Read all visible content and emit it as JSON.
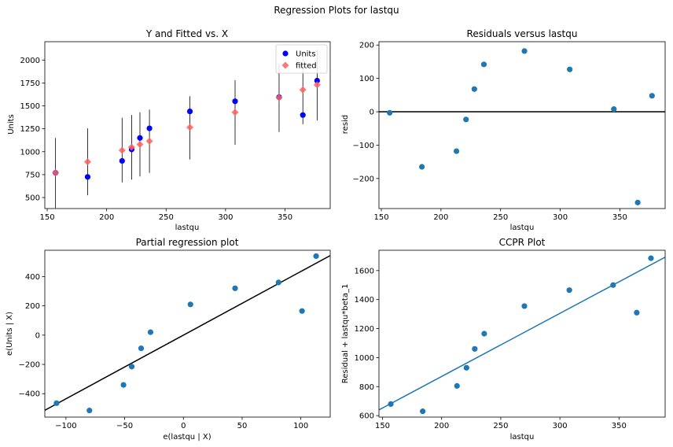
{
  "suptitle": "Regression Plots for lastqu",
  "chart_data": [
    {
      "type": "scatter",
      "title": "Y and Fitted vs. X",
      "xlabel": "lastqu",
      "ylabel": "Units",
      "xlim": [
        148,
        388
      ],
      "ylim": [
        380,
        2200
      ],
      "xticks": [
        150,
        200,
        250,
        300,
        350
      ],
      "yticks": [
        500,
        750,
        1000,
        1250,
        1500,
        1750,
        2000
      ],
      "legend": {
        "placement": "top-right",
        "entries": [
          "Units",
          "fitted"
        ]
      },
      "series": [
        {
          "name": "Units",
          "color": "#0000ff",
          "marker": "circle",
          "points": [
            [
              157,
              770
            ],
            [
              184,
              725
            ],
            [
              213,
              900
            ],
            [
              221,
              1025
            ],
            [
              228,
              1150
            ],
            [
              236,
              1255
            ],
            [
              270,
              1440
            ],
            [
              308,
              1550
            ],
            [
              345,
              1595
            ],
            [
              365,
              1400
            ],
            [
              377,
              1775
            ]
          ]
        },
        {
          "name": "fitted",
          "color": "#ff6060",
          "marker": "diamond",
          "points": [
            [
              157,
              770
            ],
            [
              184,
              890
            ],
            [
              213,
              1015
            ],
            [
              221,
              1050
            ],
            [
              228,
              1080
            ],
            [
              236,
              1115
            ],
            [
              270,
              1265
            ],
            [
              308,
              1430
            ],
            [
              345,
              1590
            ],
            [
              365,
              1675
            ],
            [
              377,
              1730
            ]
          ]
        }
      ],
      "error_bars": [
        [
          157,
          385,
          1150
        ],
        [
          184,
          525,
          1255
        ],
        [
          213,
          665,
          1370
        ],
        [
          221,
          695,
          1400
        ],
        [
          228,
          730,
          1430
        ],
        [
          236,
          770,
          1460
        ],
        [
          270,
          915,
          1605
        ],
        [
          308,
          1075,
          1780
        ],
        [
          345,
          1215,
          1960
        ],
        [
          365,
          1300,
          2050
        ],
        [
          377,
          1340,
          2110
        ]
      ]
    },
    {
      "type": "scatter",
      "title": "Residuals versus lastqu",
      "xlabel": "lastqu",
      "ylabel": "resid",
      "xlim": [
        148,
        388
      ],
      "ylim": [
        -290,
        210
      ],
      "xticks": [
        150,
        200,
        250,
        300,
        350
      ],
      "yticks": [
        -200,
        -100,
        0,
        100,
        200
      ],
      "ytick_labels": [
        "−200",
        "−100",
        "0",
        "100",
        "200"
      ],
      "hline": 0,
      "color": "#1f77b4",
      "points": [
        [
          157,
          -3
        ],
        [
          184,
          -165
        ],
        [
          213,
          -118
        ],
        [
          221,
          -23
        ],
        [
          228,
          68
        ],
        [
          236,
          142
        ],
        [
          270,
          182
        ],
        [
          308,
          127
        ],
        [
          345,
          8
        ],
        [
          365,
          -272
        ],
        [
          377,
          48
        ]
      ]
    },
    {
      "type": "scatter",
      "title": "Partial regression plot",
      "xlabel": "e(lastqu | X)",
      "ylabel": "e(Units | X)",
      "xlim": [
        -118,
        125
      ],
      "ylim": [
        -560,
        580
      ],
      "xticks": [
        -100,
        -50,
        0,
        50,
        100
      ],
      "xtick_labels": [
        "−100",
        "−50",
        "0",
        "50",
        "100"
      ],
      "yticks": [
        -400,
        -200,
        0,
        200,
        400
      ],
      "ytick_labels": [
        "−400",
        "−200",
        "0",
        "200",
        "400"
      ],
      "color": "#1f77b4",
      "fit_line": {
        "slope": 4.35,
        "intercept": 0,
        "color": "#000000"
      },
      "points": [
        [
          -108,
          -465
        ],
        [
          -80,
          -515
        ],
        [
          -51,
          -340
        ],
        [
          -44,
          -215
        ],
        [
          -36,
          -90
        ],
        [
          -28,
          20
        ],
        [
          6,
          210
        ],
        [
          44,
          320
        ],
        [
          81,
          360
        ],
        [
          101,
          165
        ],
        [
          113,
          540
        ]
      ]
    },
    {
      "type": "scatter",
      "title": "CCPR Plot",
      "xlabel": "lastqu",
      "ylabel": "Residual + lastqu*beta_1",
      "xlim": [
        147,
        389
      ],
      "ylim": [
        590,
        1740
      ],
      "xticks": [
        150,
        200,
        250,
        300,
        350
      ],
      "yticks": [
        600,
        800,
        1000,
        1200,
        1400,
        1600
      ],
      "color": "#1f77b4",
      "fit_line": {
        "slope": 4.35,
        "intercept": 0,
        "color": "#1f77b4"
      },
      "points": [
        [
          157,
          680
        ],
        [
          184,
          630
        ],
        [
          213,
          805
        ],
        [
          221,
          930
        ],
        [
          228,
          1060
        ],
        [
          236,
          1165
        ],
        [
          270,
          1355
        ],
        [
          308,
          1465
        ],
        [
          345,
          1500
        ],
        [
          365,
          1310
        ],
        [
          377,
          1685
        ]
      ]
    }
  ]
}
